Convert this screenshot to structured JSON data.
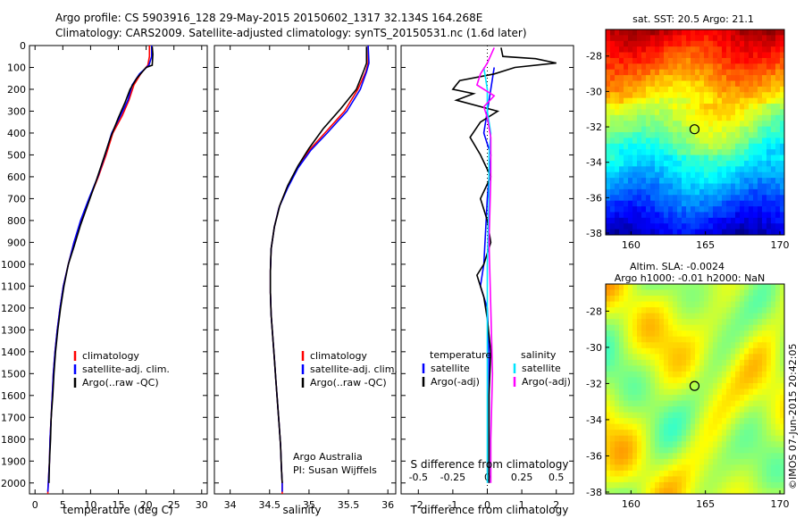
{
  "header": {
    "line1": "Argo profile: CS 5903916_128 29-May-2015 20150602_1317 32.134S 164.268E",
    "line2": "Climatology: CARS2009. Satellite-adjusted climatology: synTS_20150531.nc (1.6d later)"
  },
  "footer": {
    "credit": "Argo Australia",
    "pi": "PI: Susan Wijffels",
    "watermark": "©IMOS 07-Jun-2015 20:42:05"
  },
  "colors": {
    "climatology": "#ff0000",
    "satellite": "#0000ff",
    "argo": "#000000",
    "sal_satellite": "#00e5ff",
    "sal_argo": "#ff00ff"
  },
  "chart_data": [
    {
      "id": "temperature",
      "type": "line",
      "xlabel": "temperature (deg C)",
      "ylabel": "",
      "xlim": [
        -1,
        31
      ],
      "ylim": [
        2050,
        0
      ],
      "xticks": [
        0,
        5,
        10,
        15,
        20,
        25,
        30
      ],
      "yticks": [
        0,
        100,
        200,
        300,
        400,
        500,
        600,
        700,
        800,
        900,
        1000,
        1100,
        1200,
        1300,
        1400,
        1500,
        1600,
        1700,
        1800,
        1900,
        2000
      ],
      "legend": [
        "climatology",
        "satellite-adj. clim.",
        "Argo(..raw -QC)"
      ],
      "series": [
        {
          "name": "climatology",
          "color": "#ff0000",
          "points": [
            [
              20.6,
              0
            ],
            [
              20.6,
              50
            ],
            [
              20.3,
              90
            ],
            [
              19.0,
              130
            ],
            [
              17.8,
              180
            ],
            [
              16.9,
              250
            ],
            [
              15.7,
              320
            ],
            [
              14.0,
              400
            ],
            [
              12.8,
              500
            ],
            [
              11.4,
              600
            ],
            [
              9.8,
              700
            ],
            [
              8.3,
              800
            ],
            [
              7.0,
              900
            ],
            [
              6.0,
              1000
            ],
            [
              5.1,
              1100
            ],
            [
              4.5,
              1200
            ],
            [
              4.0,
              1300
            ],
            [
              3.6,
              1400
            ],
            [
              3.3,
              1500
            ],
            [
              3.1,
              1600
            ],
            [
              2.9,
              1700
            ],
            [
              2.7,
              1800
            ],
            [
              2.6,
              1900
            ],
            [
              2.4,
              2000
            ],
            [
              2.3,
              2050
            ]
          ]
        },
        {
          "name": "satellite-adj. clim.",
          "color": "#0000ff",
          "points": [
            [
              21.0,
              0
            ],
            [
              21.0,
              50
            ],
            [
              20.5,
              90
            ],
            [
              18.8,
              130
            ],
            [
              17.5,
              180
            ],
            [
              16.7,
              250
            ],
            [
              15.4,
              320
            ],
            [
              13.8,
              400
            ],
            [
              12.6,
              500
            ],
            [
              11.3,
              600
            ],
            [
              9.7,
              700
            ],
            [
              8.2,
              800
            ],
            [
              7.0,
              900
            ],
            [
              6.0,
              1000
            ],
            [
              5.1,
              1100
            ],
            [
              4.5,
              1200
            ],
            [
              4.0,
              1300
            ],
            [
              3.6,
              1400
            ],
            [
              3.3,
              1500
            ],
            [
              3.1,
              1600
            ],
            [
              2.9,
              1700
            ],
            [
              2.7,
              1800
            ],
            [
              2.6,
              1900
            ],
            [
              2.4,
              2000
            ],
            [
              2.3,
              2040
            ]
          ]
        },
        {
          "name": "Argo(..raw -QC)",
          "color": "#000000",
          "points": [
            [
              21.1,
              5
            ],
            [
              21.2,
              40
            ],
            [
              21.1,
              90
            ],
            [
              20.0,
              100
            ],
            [
              18.3,
              150
            ],
            [
              17.1,
              200
            ],
            [
              16.2,
              260
            ],
            [
              15.0,
              330
            ],
            [
              13.6,
              420
            ],
            [
              12.3,
              520
            ],
            [
              11.0,
              620
            ],
            [
              9.6,
              720
            ],
            [
              8.2,
              820
            ],
            [
              7.0,
              920
            ],
            [
              6.0,
              1000
            ],
            [
              5.2,
              1100
            ],
            [
              4.6,
              1200
            ],
            [
              4.1,
              1300
            ],
            [
              3.7,
              1400
            ],
            [
              3.4,
              1500
            ],
            [
              3.2,
              1600
            ],
            [
              2.9,
              1700
            ],
            [
              2.8,
              1800
            ],
            [
              2.6,
              1900
            ],
            [
              2.5,
              2000
            ]
          ]
        }
      ]
    },
    {
      "id": "salinity",
      "type": "line",
      "xlabel": "salinity",
      "ylabel": "",
      "xlim": [
        33.8,
        36.1
      ],
      "ylim": [
        2050,
        0
      ],
      "xticks": [
        34,
        34.5,
        35,
        35.5,
        36
      ],
      "legend": [
        "climatology",
        "satellite-adj. clim.",
        "Argo(..raw -QC)"
      ],
      "series": [
        {
          "name": "climatology",
          "color": "#ff0000",
          "points": [
            [
              35.75,
              0
            ],
            [
              35.75,
              80
            ],
            [
              35.72,
              120
            ],
            [
              35.62,
              200
            ],
            [
              35.45,
              300
            ],
            [
              35.2,
              400
            ],
            [
              35.0,
              480
            ],
            [
              34.85,
              560
            ],
            [
              34.72,
              650
            ],
            [
              34.62,
              740
            ],
            [
              34.56,
              830
            ],
            [
              34.52,
              930
            ],
            [
              34.51,
              1030
            ],
            [
              34.51,
              1130
            ],
            [
              34.52,
              1230
            ],
            [
              34.54,
              1330
            ],
            [
              34.56,
              1430
            ],
            [
              34.58,
              1530
            ],
            [
              34.6,
              1630
            ],
            [
              34.62,
              1730
            ],
            [
              34.64,
              1830
            ],
            [
              34.65,
              1930
            ],
            [
              34.66,
              2000
            ],
            [
              34.66,
              2050
            ]
          ]
        },
        {
          "name": "satellite-adj. clim.",
          "color": "#0000ff",
          "points": [
            [
              35.75,
              0
            ],
            [
              35.76,
              80
            ],
            [
              35.73,
              120
            ],
            [
              35.65,
              200
            ],
            [
              35.48,
              300
            ],
            [
              35.23,
              400
            ],
            [
              35.02,
              480
            ],
            [
              34.86,
              560
            ],
            [
              34.73,
              650
            ],
            [
              34.62,
              740
            ],
            [
              34.56,
              830
            ],
            [
              34.52,
              930
            ],
            [
              34.51,
              1030
            ],
            [
              34.51,
              1130
            ],
            [
              34.52,
              1230
            ],
            [
              34.54,
              1330
            ],
            [
              34.56,
              1430
            ],
            [
              34.58,
              1530
            ],
            [
              34.6,
              1630
            ],
            [
              34.62,
              1730
            ],
            [
              34.64,
              1830
            ],
            [
              34.65,
              1930
            ],
            [
              34.66,
              2000
            ],
            [
              34.66,
              2040
            ]
          ]
        },
        {
          "name": "Argo(..raw -QC)",
          "color": "#000000",
          "points": [
            [
              35.73,
              5
            ],
            [
              35.73,
              80
            ],
            [
              35.7,
              110
            ],
            [
              35.6,
              200
            ],
            [
              35.4,
              290
            ],
            [
              35.18,
              380
            ],
            [
              35.0,
              470
            ],
            [
              34.86,
              550
            ],
            [
              34.73,
              640
            ],
            [
              34.63,
              730
            ],
            [
              34.56,
              830
            ],
            [
              34.52,
              930
            ],
            [
              34.51,
              1030
            ],
            [
              34.51,
              1130
            ],
            [
              34.52,
              1230
            ],
            [
              34.54,
              1330
            ],
            [
              34.56,
              1430
            ],
            [
              34.58,
              1530
            ],
            [
              34.6,
              1630
            ],
            [
              34.62,
              1730
            ],
            [
              34.64,
              1830
            ],
            [
              34.65,
              1930
            ],
            [
              34.66,
              2000
            ]
          ]
        }
      ]
    },
    {
      "id": "difference",
      "type": "line",
      "xlabel": "T difference from climatology",
      "xlabel2": "S difference from climatology",
      "xlim": [
        -2.5,
        2.5
      ],
      "ylim": [
        2050,
        0
      ],
      "xticks": [
        -2,
        -1,
        0,
        1,
        2
      ],
      "xticks_s": [
        -0.5,
        -0.25,
        0,
        0.25,
        0.5
      ],
      "legend_headers": [
        "temperature",
        "salinity"
      ],
      "legend": [
        "satellite",
        "Argo(-adj)",
        "satellite",
        "Argo(-adj)"
      ],
      "series": [
        {
          "name": "temperature satellite",
          "color": "#0000ff",
          "points": [
            [
              0.2,
              100
            ],
            [
              0.1,
              200
            ],
            [
              0.0,
              300
            ],
            [
              -0.1,
              400
            ],
            [
              0.1,
              500
            ],
            [
              0.0,
              700
            ],
            [
              -0.1,
              1000
            ],
            [
              -0.2,
              1100
            ],
            [
              0.0,
              1200
            ],
            [
              0.05,
              1400
            ],
            [
              0.05,
              1600
            ],
            [
              0.05,
              1800
            ],
            [
              0.05,
              2000
            ]
          ]
        },
        {
          "name": "temperature Argo(-adj)",
          "color": "#000000",
          "points": [
            [
              0.4,
              10
            ],
            [
              0.45,
              50
            ],
            [
              1.4,
              60
            ],
            [
              2.0,
              80
            ],
            [
              0.8,
              100
            ],
            [
              0.2,
              130
            ],
            [
              -0.8,
              160
            ],
            [
              -1.0,
              200
            ],
            [
              -0.4,
              220
            ],
            [
              -0.9,
              250
            ],
            [
              0.3,
              300
            ],
            [
              -0.2,
              350
            ],
            [
              -0.5,
              420
            ],
            [
              -0.2,
              500
            ],
            [
              0.1,
              600
            ],
            [
              -0.2,
              700
            ],
            [
              0.0,
              800
            ],
            [
              0.1,
              900
            ],
            [
              -0.1,
              1000
            ],
            [
              -0.3,
              1050
            ],
            [
              -0.1,
              1150
            ],
            [
              0.0,
              1250
            ],
            [
              0.1,
              1400
            ],
            [
              0.05,
              1600
            ],
            [
              0.05,
              1800
            ],
            [
              0.05,
              2000
            ]
          ]
        },
        {
          "name": "salinity satellite",
          "color": "#00e5ff",
          "points": [
            [
              -0.1,
              100
            ],
            [
              0.0,
              200
            ],
            [
              0.0,
              300
            ],
            [
              0.1,
              400
            ],
            [
              0.05,
              500
            ],
            [
              0.05,
              700
            ],
            [
              0.0,
              1000
            ],
            [
              0.0,
              1200
            ],
            [
              0.0,
              1500
            ],
            [
              0.0,
              2000
            ]
          ]
        },
        {
          "name": "salinity Argo(-adj)",
          "color": "#ff00ff",
          "points": [
            [
              0.2,
              10
            ],
            [
              0.0,
              80
            ],
            [
              -0.2,
              130
            ],
            [
              -0.3,
              180
            ],
            [
              0.2,
              230
            ],
            [
              -0.1,
              280
            ],
            [
              0.0,
              330
            ],
            [
              0.1,
              420
            ],
            [
              0.1,
              600
            ],
            [
              0.05,
              900
            ],
            [
              0.1,
              1200
            ],
            [
              0.15,
              1500
            ],
            [
              0.1,
              1800
            ],
            [
              0.1,
              2000
            ]
          ]
        }
      ]
    },
    {
      "id": "sst-map",
      "type": "heatmap",
      "title": "sat. SST: 20.5 Argo: 21.1",
      "xlim": [
        158.3,
        170.3
      ],
      "ylim": [
        -38.1,
        -26.5
      ],
      "xticks": [
        160,
        165,
        170
      ],
      "yticks": [
        -28,
        -30,
        -32,
        -34,
        -36,
        -38
      ],
      "marker": {
        "lon": 164.268,
        "lat": -32.134
      }
    },
    {
      "id": "sla-map",
      "type": "heatmap",
      "title": "Altim. SLA: -0.0024",
      "subtitle": "Argo h1000: -0.01 h2000: NaN",
      "xlim": [
        158.3,
        170.3
      ],
      "ylim": [
        -38.1,
        -26.5
      ],
      "xticks": [
        160,
        165,
        170
      ],
      "yticks": [
        -28,
        -30,
        -32,
        -34,
        -36,
        -38
      ],
      "marker": {
        "lon": 164.268,
        "lat": -32.134
      }
    }
  ]
}
